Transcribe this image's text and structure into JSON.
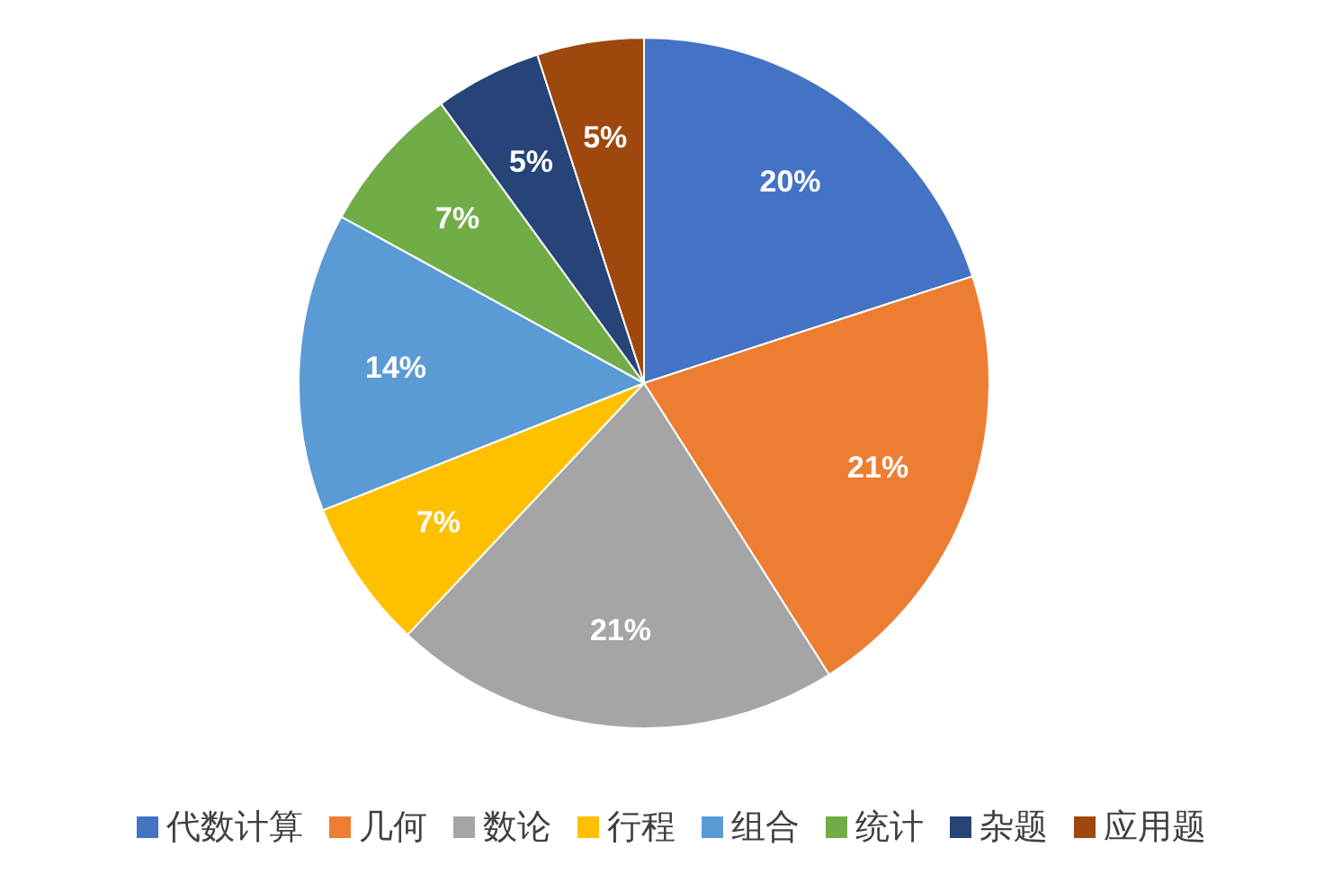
{
  "chart_data": {
    "type": "pie",
    "categories": [
      "代数计算",
      "几何",
      "数论",
      "行程",
      "组合",
      "统计",
      "杂题",
      "应用题"
    ],
    "values": [
      20,
      21,
      21,
      7,
      14,
      7,
      5,
      5
    ],
    "colors": [
      "#4472c4",
      "#ed7d31",
      "#a5a5a5",
      "#ffc000",
      "#5b9bd5",
      "#70ad47",
      "#264478",
      "#9e480e"
    ],
    "value_labels": [
      "20%",
      "21%",
      "21%",
      "7%",
      "14%",
      "7%",
      "5%",
      "5%"
    ],
    "legend": "bottom"
  }
}
